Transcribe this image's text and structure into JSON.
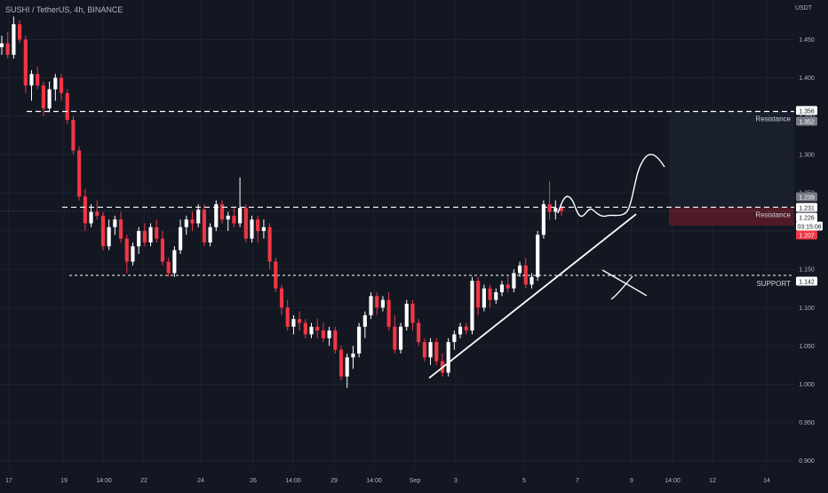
{
  "header": {
    "title": "SUSHI / TetherUS, 4h, BINANCE"
  },
  "axis_currency": "USDT",
  "colors": {
    "background": "#131722",
    "grid": "#1e222d",
    "up": "#ffffff",
    "down": "#f23645",
    "axis_text": "#b2b5be",
    "drawing": "#ffffff",
    "box_resistance_upper": "#1c2030",
    "box_resistance_lower": "#5a1b27"
  },
  "chart_data": {
    "type": "candlestick",
    "title": "SUSHI / TetherUS, 4h, BINANCE",
    "ylim": [
      0.895,
      1.49
    ],
    "y_ticks": [
      "1.450",
      "1.400",
      "1.350",
      "1.300",
      "1.250",
      "1.200",
      "1.150",
      "1.100",
      "1.050",
      "1.000",
      "0.950",
      "0.900"
    ],
    "x_ticks": [
      "17",
      "19",
      "14:00",
      "22",
      "24",
      "26",
      "14:00",
      "29",
      "14:00",
      "Sep",
      "3",
      "5",
      "7",
      "9",
      "14:00",
      "12",
      "14"
    ],
    "grid": true,
    "levels": [
      {
        "label": "Resistance",
        "price": 1.356,
        "style": "dashed"
      },
      {
        "label": "Resistance",
        "price": 1.231,
        "style": "dashed"
      },
      {
        "label": "SUPPORT",
        "price": 1.142,
        "style": "dotted"
      }
    ],
    "price_tags": [
      {
        "value": "1.356",
        "kind": "white"
      },
      {
        "value": "1.352",
        "kind": "gray"
      },
      {
        "value": "1.239",
        "kind": "gray"
      },
      {
        "value": "1.231",
        "kind": "white"
      },
      {
        "value": "1.226",
        "kind": "white"
      },
      {
        "value": "03:15:06",
        "kind": "timer"
      },
      {
        "value": "1.207",
        "kind": "red"
      },
      {
        "value": "1.142",
        "kind": "white"
      }
    ],
    "annotations": [
      "Resistance",
      "Resistance",
      "SUPPORT"
    ],
    "candles": [
      [
        1.44,
        1.455,
        1.43,
        1.445
      ],
      [
        1.445,
        1.46,
        1.425,
        1.43
      ],
      [
        1.43,
        1.48,
        1.425,
        1.47
      ],
      [
        1.47,
        1.475,
        1.445,
        1.45
      ],
      [
        1.45,
        1.455,
        1.38,
        1.39
      ],
      [
        1.39,
        1.41,
        1.37,
        1.405
      ],
      [
        1.405,
        1.415,
        1.385,
        1.39
      ],
      [
        1.39,
        1.395,
        1.35,
        1.36
      ],
      [
        1.36,
        1.395,
        1.355,
        1.385
      ],
      [
        1.385,
        1.405,
        1.37,
        1.4
      ],
      [
        1.4,
        1.405,
        1.37,
        1.38
      ],
      [
        1.38,
        1.385,
        1.34,
        1.345
      ],
      [
        1.345,
        1.35,
        1.3,
        1.305
      ],
      [
        1.305,
        1.31,
        1.24,
        1.245
      ],
      [
        1.245,
        1.255,
        1.2,
        1.21
      ],
      [
        1.21,
        1.235,
        1.205,
        1.225
      ],
      [
        1.225,
        1.24,
        1.215,
        1.22
      ],
      [
        1.22,
        1.225,
        1.175,
        1.18
      ],
      [
        1.18,
        1.215,
        1.175,
        1.205
      ],
      [
        1.205,
        1.22,
        1.195,
        1.215
      ],
      [
        1.215,
        1.225,
        1.185,
        1.19
      ],
      [
        1.19,
        1.195,
        1.145,
        1.16
      ],
      [
        1.16,
        1.185,
        1.155,
        1.18
      ],
      [
        1.18,
        1.205,
        1.17,
        1.2
      ],
      [
        1.2,
        1.21,
        1.18,
        1.185
      ],
      [
        1.185,
        1.21,
        1.18,
        1.205
      ],
      [
        1.205,
        1.215,
        1.185,
        1.19
      ],
      [
        1.19,
        1.2,
        1.155,
        1.16
      ],
      [
        1.16,
        1.165,
        1.14,
        1.145
      ],
      [
        1.145,
        1.18,
        1.14,
        1.175
      ],
      [
        1.175,
        1.215,
        1.17,
        1.205
      ],
      [
        1.205,
        1.22,
        1.195,
        1.215
      ],
      [
        1.215,
        1.225,
        1.2,
        1.21
      ],
      [
        1.21,
        1.235,
        1.205,
        1.228
      ],
      [
        1.228,
        1.235,
        1.18,
        1.185
      ],
      [
        1.185,
        1.21,
        1.18,
        1.205
      ],
      [
        1.205,
        1.24,
        1.2,
        1.235
      ],
      [
        1.235,
        1.24,
        1.21,
        1.215
      ],
      [
        1.215,
        1.225,
        1.2,
        1.22
      ],
      [
        1.22,
        1.23,
        1.205,
        1.21
      ],
      [
        1.21,
        1.27,
        1.205,
        1.23
      ],
      [
        1.23,
        1.235,
        1.185,
        1.19
      ],
      [
        1.19,
        1.22,
        1.185,
        1.215
      ],
      [
        1.215,
        1.22,
        1.185,
        1.2
      ],
      [
        1.2,
        1.215,
        1.19,
        1.205
      ],
      [
        1.205,
        1.21,
        1.15,
        1.16
      ],
      [
        1.16,
        1.165,
        1.12,
        1.125
      ],
      [
        1.125,
        1.13,
        1.09,
        1.1
      ],
      [
        1.1,
        1.11,
        1.07,
        1.075
      ],
      [
        1.075,
        1.09,
        1.065,
        1.085
      ],
      [
        1.085,
        1.095,
        1.07,
        1.08
      ],
      [
        1.08,
        1.085,
        1.06,
        1.065
      ],
      [
        1.065,
        1.08,
        1.06,
        1.075
      ],
      [
        1.075,
        1.085,
        1.06,
        1.07
      ],
      [
        1.07,
        1.08,
        1.055,
        1.06
      ],
      [
        1.06,
        1.075,
        1.05,
        1.07
      ],
      [
        1.07,
        1.075,
        1.04,
        1.045
      ],
      [
        1.045,
        1.05,
        1.005,
        1.01
      ],
      [
        1.01,
        1.04,
        0.995,
        1.035
      ],
      [
        1.035,
        1.05,
        1.02,
        1.04
      ],
      [
        1.04,
        1.08,
        1.035,
        1.075
      ],
      [
        1.075,
        1.095,
        1.06,
        1.09
      ],
      [
        1.09,
        1.12,
        1.085,
        1.115
      ],
      [
        1.115,
        1.12,
        1.09,
        1.1
      ],
      [
        1.1,
        1.115,
        1.095,
        1.11
      ],
      [
        1.11,
        1.12,
        1.07,
        1.075
      ],
      [
        1.075,
        1.09,
        1.04,
        1.045
      ],
      [
        1.045,
        1.08,
        1.04,
        1.075
      ],
      [
        1.075,
        1.11,
        1.07,
        1.105
      ],
      [
        1.105,
        1.11,
        1.07,
        1.08
      ],
      [
        1.08,
        1.085,
        1.05,
        1.055
      ],
      [
        1.055,
        1.06,
        1.03,
        1.035
      ],
      [
        1.035,
        1.06,
        1.025,
        1.055
      ],
      [
        1.055,
        1.06,
        1.025,
        1.03
      ],
      [
        1.03,
        1.04,
        1.01,
        1.015
      ],
      [
        1.015,
        1.06,
        1.01,
        1.055
      ],
      [
        1.055,
        1.07,
        1.045,
        1.065
      ],
      [
        1.065,
        1.08,
        1.06,
        1.075
      ],
      [
        1.075,
        1.08,
        1.065,
        1.07
      ],
      [
        1.07,
        1.14,
        1.065,
        1.135
      ],
      [
        1.135,
        1.14,
        1.09,
        1.1
      ],
      [
        1.1,
        1.13,
        1.095,
        1.125
      ],
      [
        1.125,
        1.13,
        1.1,
        1.11
      ],
      [
        1.11,
        1.125,
        1.105,
        1.12
      ],
      [
        1.12,
        1.135,
        1.115,
        1.13
      ],
      [
        1.13,
        1.14,
        1.12,
        1.125
      ],
      [
        1.125,
        1.15,
        1.12,
        1.145
      ],
      [
        1.145,
        1.16,
        1.14,
        1.155
      ],
      [
        1.155,
        1.165,
        1.125,
        1.13
      ],
      [
        1.13,
        1.145,
        1.125,
        1.14
      ],
      [
        1.14,
        1.2,
        1.135,
        1.195
      ],
      [
        1.195,
        1.24,
        1.19,
        1.235
      ],
      [
        1.235,
        1.265,
        1.215,
        1.225
      ],
      [
        1.225,
        1.24,
        1.215,
        1.23
      ],
      [
        1.23,
        1.235,
        1.22,
        1.226
      ]
    ]
  }
}
